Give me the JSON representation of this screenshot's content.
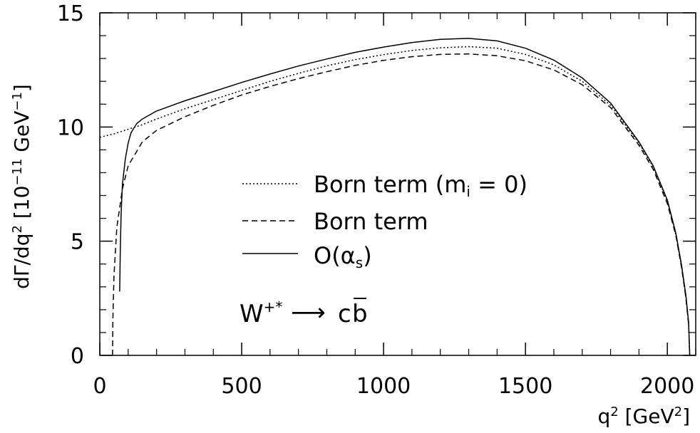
{
  "chart_data": {
    "type": "line",
    "xlabel": "q",
    "xlabel_sup": "2",
    "xlabel_unit": "[GeV",
    "xlabel_unit_sup": "2",
    "xlabel_close": "]",
    "ylabel": "dΓ/dq",
    "ylabel_sup": "2",
    "ylabel_unit": "[10",
    "ylabel_unit_sup": "−11",
    "ylabel_unit2": "GeV",
    "ylabel_unit2_sup": "−1",
    "ylabel_close": "]",
    "xlim": [
      0,
      2100
    ],
    "ylim": [
      0,
      15
    ],
    "xticks": [
      0,
      500,
      1000,
      1500,
      2000
    ],
    "yticks": [
      0,
      5,
      10,
      15
    ],
    "annotation": {
      "lhs": "W",
      "lhs_sup": "+*",
      "arrow": "⟶",
      "rhs_c": "c",
      "rhs_b": "b"
    },
    "legend": {
      "placement": "center",
      "entries": [
        {
          "style": "dotted",
          "label": "Born term (m",
          "sub": "i",
          "tail": " = 0)"
        },
        {
          "style": "dashed",
          "label": "Born term",
          "sub": "",
          "tail": ""
        },
        {
          "style": "solid",
          "label": "O(α",
          "sub": "s",
          "tail": ")"
        }
      ]
    },
    "series": [
      {
        "style": "dotted",
        "x": [
          0,
          50,
          100,
          150,
          200,
          300,
          400,
          500,
          600,
          700,
          800,
          900,
          1000,
          1100,
          1200,
          1300,
          1400,
          1500,
          1600,
          1700,
          1800,
          1900,
          1950,
          2000,
          2030,
          2050,
          2065,
          2075,
          2079
        ],
        "y": [
          9.55,
          9.7,
          9.9,
          10.1,
          10.35,
          10.8,
          11.2,
          11.6,
          12.0,
          12.35,
          12.68,
          12.95,
          13.17,
          13.35,
          13.47,
          13.52,
          13.45,
          13.18,
          12.72,
          12.0,
          10.95,
          9.3,
          8.25,
          6.75,
          5.3,
          3.9,
          2.6,
          1.4,
          0.0
        ]
      },
      {
        "style": "dashed",
        "x": [
          45,
          46,
          50,
          60,
          80,
          100,
          150,
          200,
          300,
          400,
          500,
          600,
          700,
          800,
          900,
          1000,
          1100,
          1200,
          1300,
          1400,
          1500,
          1600,
          1700,
          1800,
          1900,
          1950,
          2000,
          2030,
          2050,
          2065,
          2075,
          2079
        ],
        "y": [
          0.0,
          1.5,
          3.5,
          5.6,
          7.3,
          8.3,
          9.35,
          9.85,
          10.45,
          10.95,
          11.4,
          11.78,
          12.12,
          12.42,
          12.7,
          12.92,
          13.08,
          13.18,
          13.2,
          13.12,
          12.9,
          12.5,
          11.85,
          10.85,
          9.2,
          8.15,
          6.65,
          5.25,
          3.85,
          2.55,
          1.35,
          0.0
        ]
      },
      {
        "style": "solid",
        "x": [
          70,
          72,
          75,
          80,
          90,
          100,
          110,
          130,
          150,
          200,
          300,
          400,
          500,
          600,
          700,
          800,
          900,
          1000,
          1100,
          1200,
          1300,
          1400,
          1500,
          1600,
          1700,
          1800,
          1900,
          1950,
          2000,
          2030,
          2050,
          2065,
          2075,
          2079
        ],
        "y": [
          2.8,
          4.5,
          6.2,
          7.5,
          8.6,
          9.3,
          9.75,
          10.15,
          10.35,
          10.7,
          11.15,
          11.55,
          11.95,
          12.32,
          12.67,
          12.98,
          13.27,
          13.5,
          13.7,
          13.84,
          13.88,
          13.77,
          13.45,
          12.93,
          12.15,
          11.05,
          9.35,
          8.3,
          6.8,
          5.35,
          3.95,
          2.65,
          1.45,
          0.0
        ]
      }
    ]
  }
}
